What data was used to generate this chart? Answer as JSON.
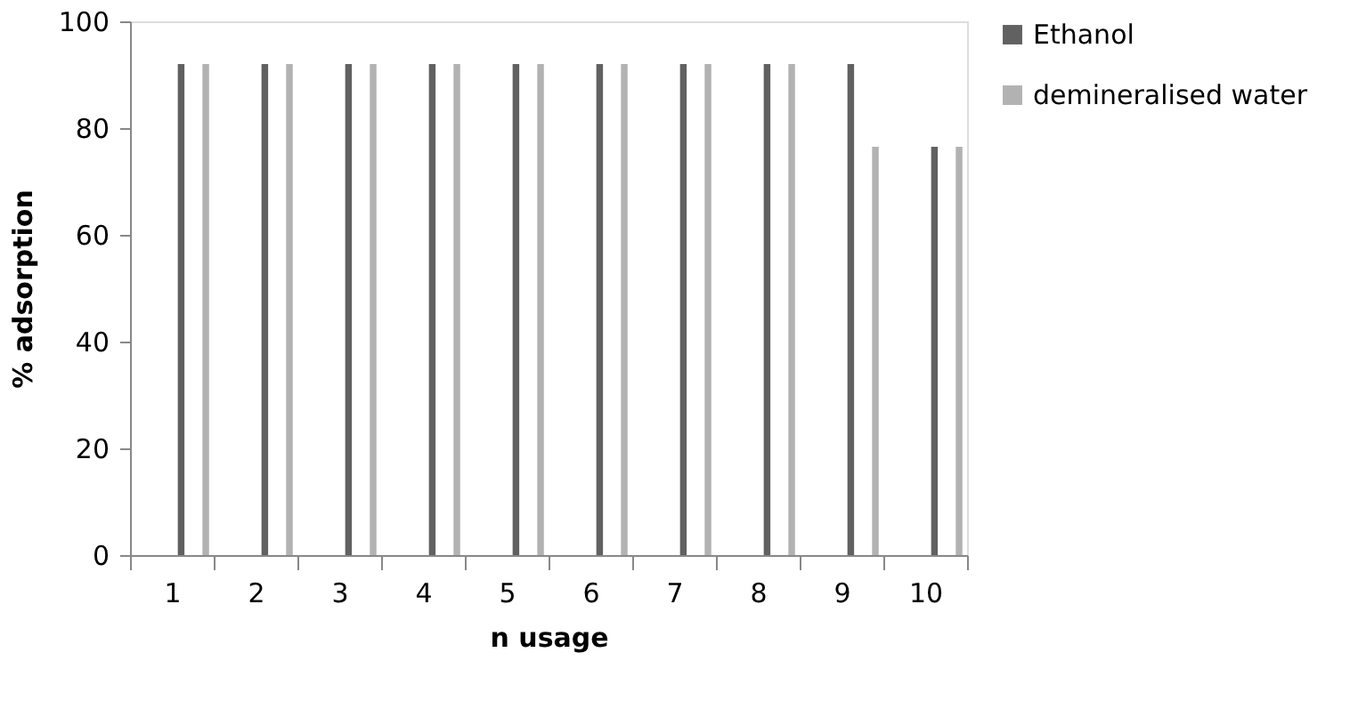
{
  "chart_data": {
    "type": "bar",
    "xlabel": "n usage",
    "ylabel": "% adsorption",
    "categories": [
      "1",
      "2",
      "3",
      "4",
      "5",
      "6",
      "7",
      "8",
      "9",
      "10"
    ],
    "series": [
      {
        "name": "Ethanol",
        "color": "#616161",
        "values": [
          92,
          92,
          92,
          92,
          92,
          92,
          92,
          92,
          92,
          76.5
        ]
      },
      {
        "name": "demineralised water",
        "color": "#b2b2b2",
        "values": [
          92,
          92,
          92,
          92,
          92,
          92,
          92,
          92,
          76.5,
          76.5
        ]
      }
    ],
    "ylim": [
      0,
      100
    ],
    "yticks": [
      0,
      20,
      40,
      60,
      80,
      100
    ],
    "grid": false,
    "legend": "right"
  }
}
